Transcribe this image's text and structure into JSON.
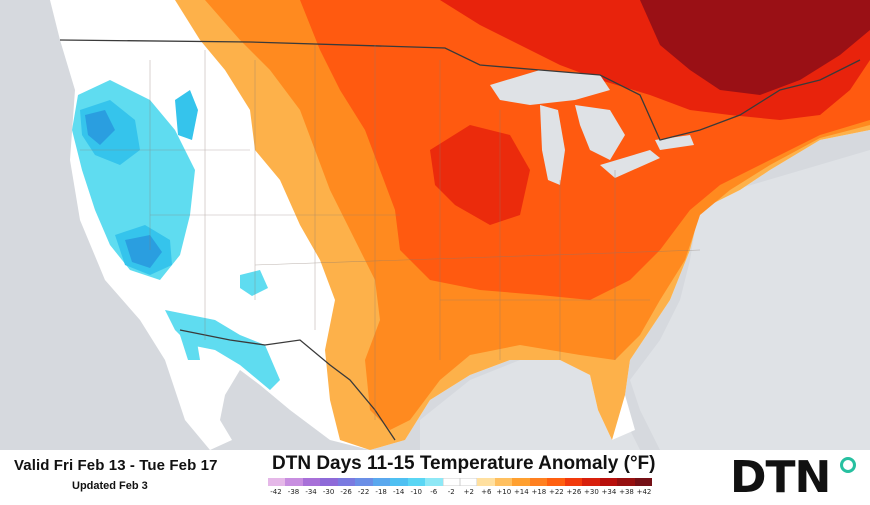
{
  "title": "DTN Days 11-15 Temperature Anomaly (°F)",
  "valid_range": "Valid Fri Feb 13 - Tue Feb 17",
  "updated": "Updated Feb 3",
  "logo_text": "DTN",
  "legend": {
    "ticks": [
      "-42",
      "-38",
      "-34",
      "-30",
      "-26",
      "-22",
      "-18",
      "-14",
      "-10",
      "-6",
      "-2",
      "+2",
      "+6",
      "+10",
      "+14",
      "+18",
      "+22",
      "+26",
      "+30",
      "+34",
      "+38",
      "+42"
    ],
    "colors": [
      "#e5b8e8",
      "#c88ee0",
      "#a870d8",
      "#8e6ad8",
      "#7a7ae0",
      "#6b8fe6",
      "#5aa8ee",
      "#4fc0f2",
      "#5ad6f4",
      "#8ee8f6",
      "#ffffff",
      "#ffffff",
      "#ffe0a0",
      "#ffc060",
      "#ffa030",
      "#ff8020",
      "#ff6010",
      "#f23a0c",
      "#d8200c",
      "#b8100c",
      "#961010",
      "#741016"
    ]
  },
  "colors": {
    "background_gray": "#d6d9de",
    "water": "#dfe2e6",
    "neutral": "#ffffff",
    "warm_light": "#fdb14a",
    "warm_mid": "#ff8a1f",
    "warm_strong": "#ff5a10",
    "warm_deep": "#e8230c",
    "warm_darkest": "#9a1015",
    "cool_light": "#5fdcf0",
    "cool_mid": "#35c4ec",
    "cool_strong": "#2a9ee0",
    "border": "#3a3a3a",
    "logo_accent": "#27c0a0"
  }
}
